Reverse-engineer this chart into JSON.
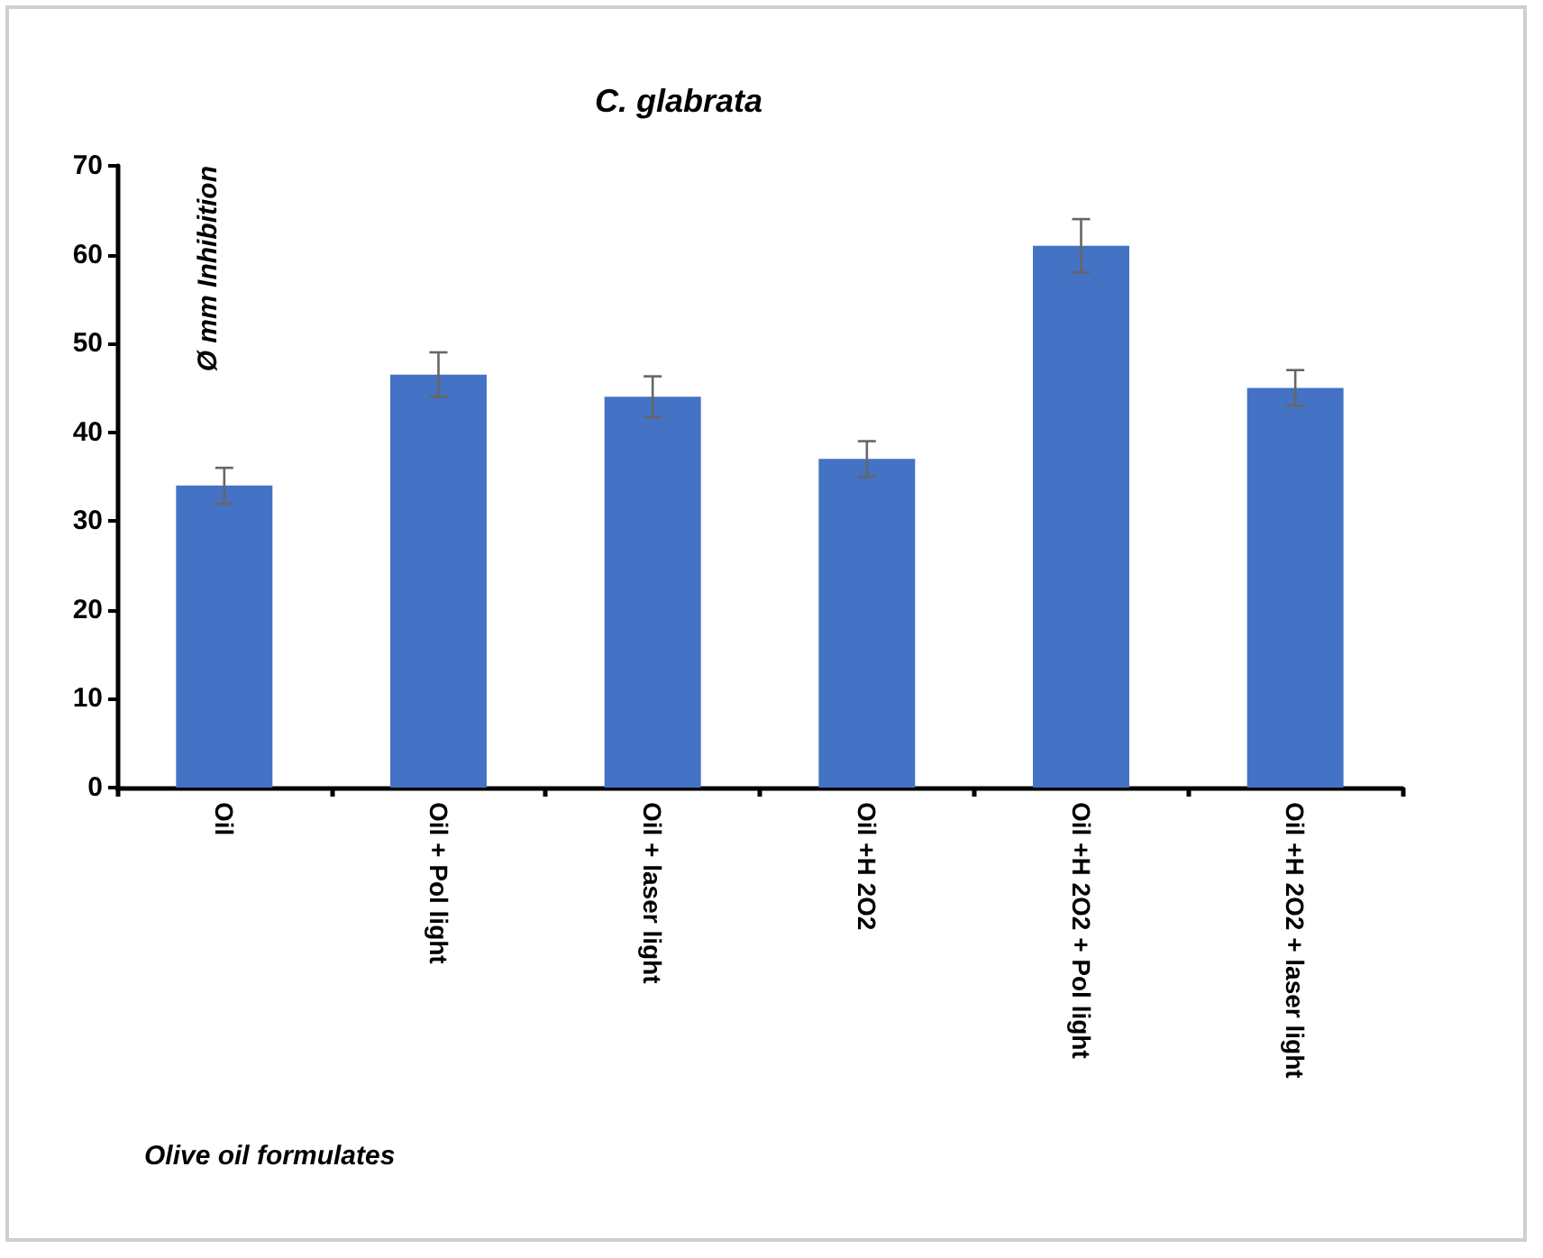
{
  "chart_data": {
    "type": "bar",
    "title": "C. glabrata",
    "xlabel": "Olive oil formulates",
    "ylabel": "Ø mm Inhibition",
    "categories": [
      "Oil",
      "Oil + Pol light",
      "Oil + laser light",
      "Oil +H 2O2",
      "Oil +H 2O2 + Pol light",
      "Oil +H 2O2 + laser light"
    ],
    "values": [
      34,
      46.5,
      44,
      37,
      61,
      45
    ],
    "errors": [
      2,
      2.5,
      2.3,
      2,
      3,
      2
    ],
    "color": "#4472c4",
    "ylim": [
      0,
      70
    ],
    "yticks": [
      0,
      10,
      20,
      30,
      40,
      50,
      60,
      70
    ],
    "grid": false
  }
}
